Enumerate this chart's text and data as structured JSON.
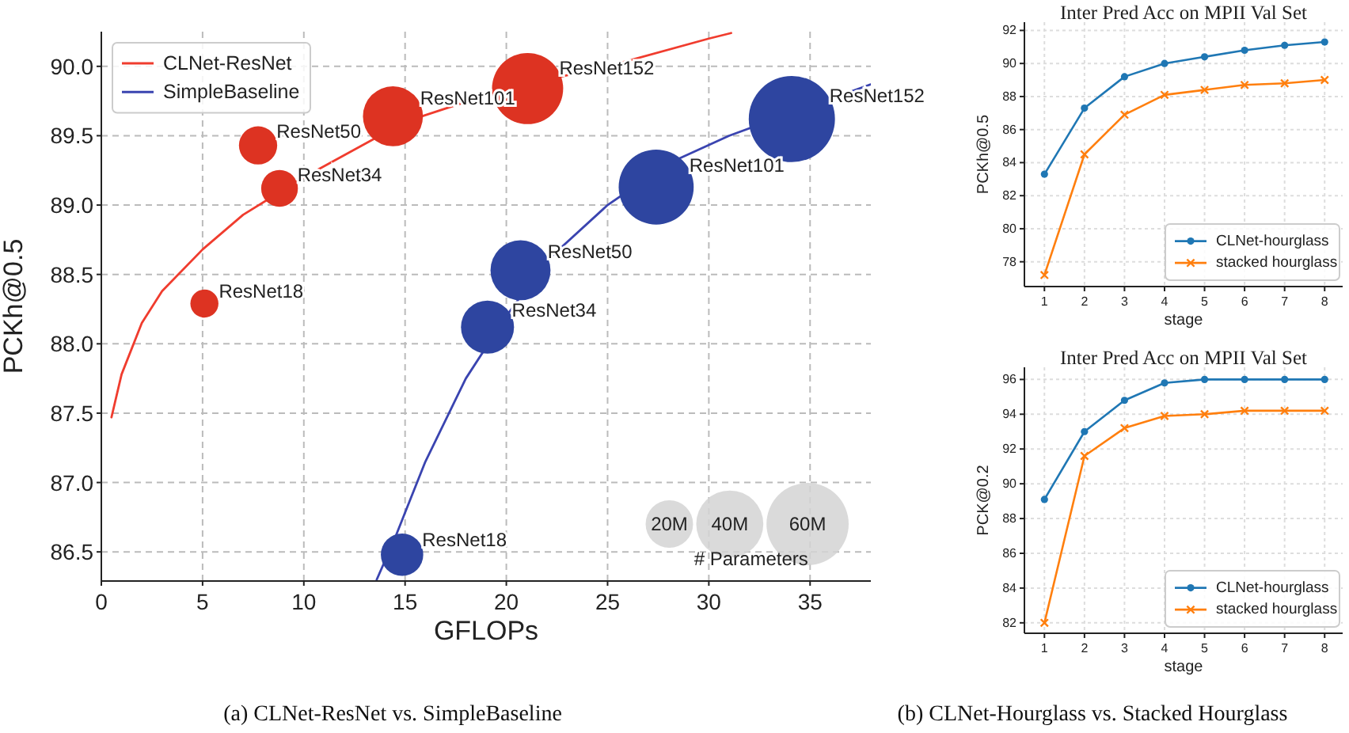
{
  "chart_data": [
    {
      "type": "bubble",
      "xlabel": "GFLOPs",
      "ylabel": "PCKh@0.5",
      "xlim": [
        0,
        38
      ],
      "ylim": [
        86.29,
        90.25
      ],
      "xticks": [
        0,
        5,
        10,
        15,
        20,
        25,
        30,
        35
      ],
      "yticks": [
        86.5,
        {
          "value": 87,
          "label": "87.0"
        },
        87.5,
        {
          "value": 88,
          "label": "88.0"
        },
        88.5,
        {
          "value": 89,
          "label": "89.0"
        },
        89.5,
        {
          "value": 90,
          "label": "90.0"
        }
      ],
      "grid": true,
      "legend": "top left",
      "legend_title": "# Parameters",
      "size_legend": [
        {
          "value": 20,
          "label": "20M"
        },
        {
          "value": 40,
          "label": "40M"
        },
        {
          "value": 60,
          "label": "60M"
        }
      ],
      "series": [
        {
          "type": "line",
          "name": "CLNet-ResNet",
          "color": "#f03c2e",
          "x": [
            0.5,
            1,
            2,
            3,
            5,
            7,
            10,
            15,
            20,
            25,
            30,
            31.1
          ],
          "values": [
            87.47,
            87.78,
            88.15,
            88.38,
            88.68,
            88.93,
            89.2,
            89.6,
            89.84,
            90.0,
            90.2,
            90.24
          ]
        },
        {
          "type": "line",
          "name": "SimpleBaseline",
          "color": "#3a44b0",
          "x": [
            13.6,
            14.5,
            16,
            18,
            20,
            22,
            25,
            28,
            31,
            34,
            38
          ],
          "values": [
            86.3,
            86.6,
            87.15,
            87.75,
            88.2,
            88.6,
            89.0,
            89.3,
            89.5,
            89.66,
            89.87
          ]
        },
        {
          "color": "#dd3322",
          "x": [
            5.09,
            8.8,
            7.74,
            14.4,
            21.05
          ],
          "values": [
            88.29,
            89.12,
            89.43,
            89.64,
            89.84
          ],
          "sizes": [
            7,
            12,
            13,
            32,
            45
          ]
        },
        {
          "color": "#2e45a0",
          "x": [
            14.85,
            19.07,
            20.7,
            27.4,
            34.1
          ],
          "values": [
            86.48,
            88.12,
            88.53,
            89.13,
            89.62
          ],
          "sizes": [
            16,
            25,
            32,
            50,
            66
          ]
        }
      ],
      "annotations": [
        {
          "text": "ResNet18",
          "x": 5.09,
          "y": 88.29
        },
        {
          "text": "ResNet34",
          "x": 8.8,
          "y": 89.12
        },
        {
          "text": "ResNet50",
          "x": 7.74,
          "y": 89.43
        },
        {
          "text": "ResNet101",
          "x": 14.4,
          "y": 89.64
        },
        {
          "text": "ResNet152",
          "x": 21.05,
          "y": 89.84
        },
        {
          "text": "ResNet18",
          "x": 14.85,
          "y": 86.48
        },
        {
          "text": "ResNet34",
          "x": 19.07,
          "y": 88.12
        },
        {
          "text": "ResNet50",
          "x": 20.7,
          "y": 88.53
        },
        {
          "text": "ResNet101",
          "x": 27.4,
          "y": 89.13
        },
        {
          "text": "ResNet152",
          "x": 34.1,
          "y": 89.62
        },
        "(a) CLNet-ResNet vs. SimpleBaseline"
      ]
    },
    {
      "type": "line",
      "title": "Inter Pred Acc on MPII Val Set",
      "xlabel": "stage",
      "ylabel": "PCKh@0.5",
      "x": [
        1,
        2,
        3,
        4,
        5,
        6,
        7,
        8
      ],
      "xlim": [
        0.5,
        8.45
      ],
      "ylim": [
        76.5,
        92.5
      ],
      "xticks": [
        1,
        2,
        3,
        4,
        5,
        6,
        7,
        8
      ],
      "yticks": [
        78,
        80,
        82,
        84,
        86,
        88,
        90,
        92
      ],
      "grid": true,
      "legend": "bottom right",
      "series": [
        {
          "name": "CLNet-hourglass",
          "color": "#1f77b4",
          "marker": "circle",
          "values": [
            83.3,
            87.3,
            89.2,
            90.0,
            90.4,
            90.8,
            91.1,
            91.3
          ]
        },
        {
          "name": "stacked hourglass",
          "color": "#ff7f0e",
          "marker": "cross",
          "values": [
            77.2,
            84.5,
            86.9,
            88.1,
            88.4,
            88.7,
            88.8,
            89.0
          ]
        }
      ]
    },
    {
      "type": "line",
      "title": "Inter Pred Acc on MPII Val Set",
      "xlabel": "stage",
      "ylabel": "PCK@0.2",
      "x": [
        1,
        2,
        3,
        4,
        5,
        6,
        7,
        8
      ],
      "xlim": [
        0.5,
        8.45
      ],
      "ylim": [
        81.4,
        96.7
      ],
      "xticks": [
        1,
        2,
        3,
        4,
        5,
        6,
        7,
        8
      ],
      "yticks": [
        82,
        84,
        86,
        88,
        90,
        92,
        94,
        96
      ],
      "grid": true,
      "legend": "bottom right",
      "series": [
        {
          "name": "CLNet-hourglass",
          "color": "#1f77b4",
          "marker": "circle",
          "values": [
            89.1,
            93.0,
            94.8,
            95.8,
            96.0,
            96.0,
            96.0,
            96.0
          ]
        },
        {
          "name": "stacked hourglass",
          "color": "#ff7f0e",
          "marker": "cross",
          "values": [
            82.0,
            91.6,
            93.2,
            93.9,
            94.0,
            94.2,
            94.2,
            94.2
          ]
        }
      ],
      "annotations": [
        "(b) CLNet-Hourglass vs. Stacked Hourglass"
      ]
    }
  ]
}
